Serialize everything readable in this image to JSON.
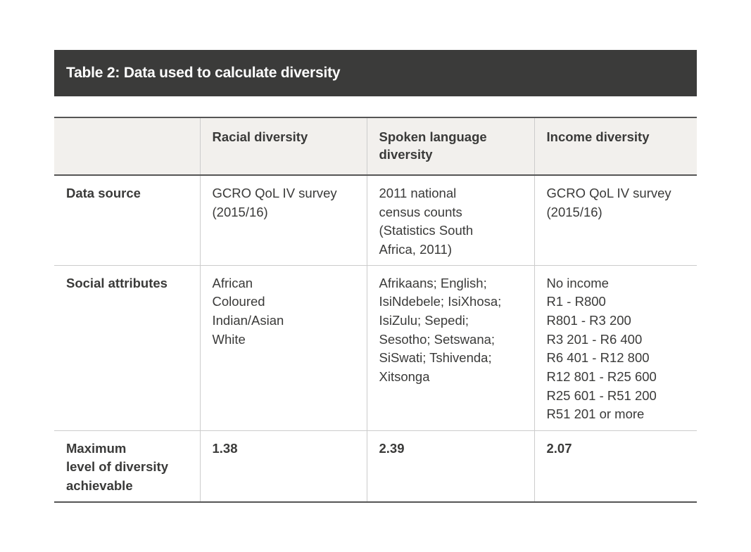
{
  "title": "Table 2: Data used to calculate diversity",
  "headers": [
    "",
    "Racial diversity",
    "Spoken language diversity",
    "Income diversity"
  ],
  "rows": {
    "data_source": {
      "label": "Data source",
      "racial": [
        "GCRO QoL IV survey",
        "(2015/16)"
      ],
      "language": [
        "2011 national",
        "census counts",
        "(Statistics South",
        "Africa, 2011)"
      ],
      "income": [
        "GCRO QoL IV survey",
        "(2015/16)"
      ]
    },
    "social_attributes": {
      "label": "Social attributes",
      "racial": [
        "African",
        "Coloured",
        "Indian/Asian",
        "White"
      ],
      "language": [
        "Afrikaans; English;",
        "IsiNdebele; IsiXhosa;",
        "IsiZulu; Sepedi;",
        "Sesotho; Setswana;",
        "SiSwati; Tshivenda;",
        "Xitsonga"
      ],
      "income": [
        "No income",
        "R1 - R800",
        "R801 - R3 200",
        "R3 201 - R6 400",
        "R6 401 - R12 800",
        "R12 801 - R25 600",
        "R25 601 - R51 200",
        "R51 201 or more"
      ]
    },
    "max_diversity": {
      "label": [
        "Maximum",
        "level of diversity",
        "achievable"
      ],
      "racial": "1.38",
      "language": "2.39",
      "income": "2.07"
    }
  }
}
